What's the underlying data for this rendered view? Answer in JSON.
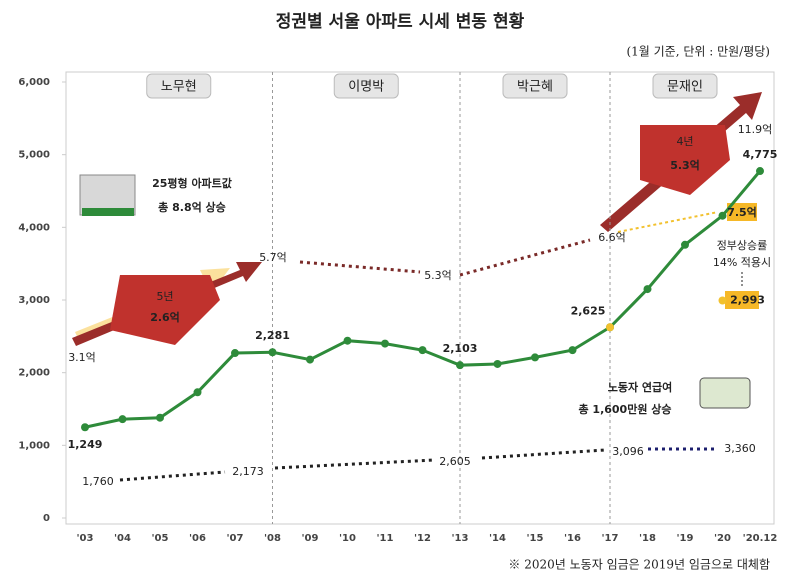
{
  "chart_data": {
    "type": "line",
    "title": "정권별 서울 아파트 시세 변동 현황",
    "subtitle": "(1월 기준, 단위 : 만원/평당)",
    "footnote": "※ 2020년 노동자 임금은 2019년 임금으로 대체함",
    "categories": [
      "'03",
      "'04",
      "'05",
      "'06",
      "'07",
      "'08",
      "'09",
      "'10",
      "'11",
      "'12",
      "'13",
      "'14",
      "'15",
      "'16",
      "'17",
      "'18",
      "'19",
      "'20",
      "'20.12"
    ],
    "series": [
      {
        "color": "#2e8b3a",
        "values": [
          1249,
          1360,
          1380,
          1730,
          2270,
          2281,
          2180,
          2440,
          2400,
          2310,
          2103,
          2120,
          2210,
          2310,
          2625,
          3150,
          3760,
          4160,
          4775
        ],
        "value_labels": [
          "1,249",
          null,
          null,
          null,
          null,
          "2,281",
          null,
          null,
          null,
          null,
          "2,103",
          null,
          null,
          null,
          "2,625",
          null,
          null,
          null,
          "4,775"
        ]
      },
      {
        "color": "#f2c12e",
        "values": [
          null,
          null,
          null,
          null,
          null,
          null,
          null,
          null,
          null,
          null,
          null,
          null,
          null,
          null,
          2625,
          null,
          null,
          2993,
          null
        ],
        "value_labels": [
          null,
          null,
          null,
          null,
          null,
          null,
          null,
          null,
          null,
          null,
          null,
          null,
          null,
          null,
          null,
          null,
          null,
          "2,993",
          null
        ]
      }
    ],
    "ylim": [
      0,
      6000
    ],
    "yticks": [
      0,
      {
        "value": 1000,
        "label": "1,000"
      },
      {
        "value": 2000,
        "label": "2,000"
      },
      {
        "value": 3000,
        "label": "3,000"
      },
      {
        "value": 4000,
        "label": "4,000"
      },
      {
        "value": 5000,
        "label": "5,000"
      },
      {
        "value": 6000,
        "label": "6,000"
      }
    ],
    "eras": [
      "노무현",
      "이명박",
      "박근혜",
      "문재인"
    ],
    "annotations": [
      "3.1억",
      "5.7억",
      "5.3억",
      "6.6억",
      "11.9억",
      "7.5억",
      "정부상승률",
      "14% 적용시",
      "25평형 아파트값",
      "총 8.8억 상승",
      "5년",
      "2.6억",
      "4년",
      "5.3억",
      "노동자 연급여",
      "총 1,600만원 상승",
      "1,760",
      "2,173",
      "2,605",
      "3,096",
      "3,360"
    ]
  }
}
